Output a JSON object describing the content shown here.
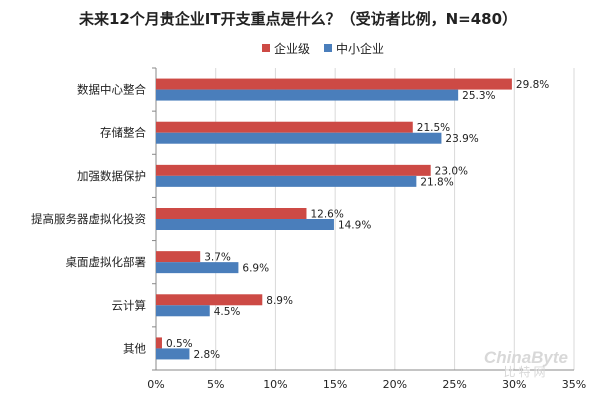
{
  "chart_data": {
    "type": "bar",
    "orientation": "horizontal",
    "title": "未来12个月贵企业IT开支重点是什么？（受访者比例，N=480）",
    "categories": [
      "数据中心整合",
      "存储整合",
      "加强数据保护",
      "提高服务器虚拟化投资",
      "桌面虚拟化部署",
      "云计算",
      "其他"
    ],
    "series": [
      {
        "name": "企业级",
        "color": "#cd4a45",
        "values": [
          29.8,
          21.5,
          23.0,
          12.6,
          3.7,
          8.9,
          0.5
        ],
        "labels": [
          "29.8%",
          "21.5%",
          "23.0%",
          "12.6%",
          "3.7%",
          "8.9%",
          "0.5%"
        ]
      },
      {
        "name": "中小企业",
        "color": "#4a7ebb",
        "values": [
          25.3,
          23.9,
          21.8,
          14.9,
          6.9,
          4.5,
          2.8
        ],
        "labels": [
          "25.3%",
          "23.9%",
          "21.8%",
          "14.9%",
          "6.9%",
          "4.5%",
          "2.8%"
        ]
      }
    ],
    "xlim": [
      0,
      35
    ],
    "xticks": [
      "0%",
      "5%",
      "10%",
      "15%",
      "20%",
      "25%",
      "30%",
      "35%"
    ],
    "grid": "vertical",
    "legend_position": "top"
  },
  "watermark": {
    "brand": "ChinaByte",
    "brand_cn": "比特网"
  }
}
